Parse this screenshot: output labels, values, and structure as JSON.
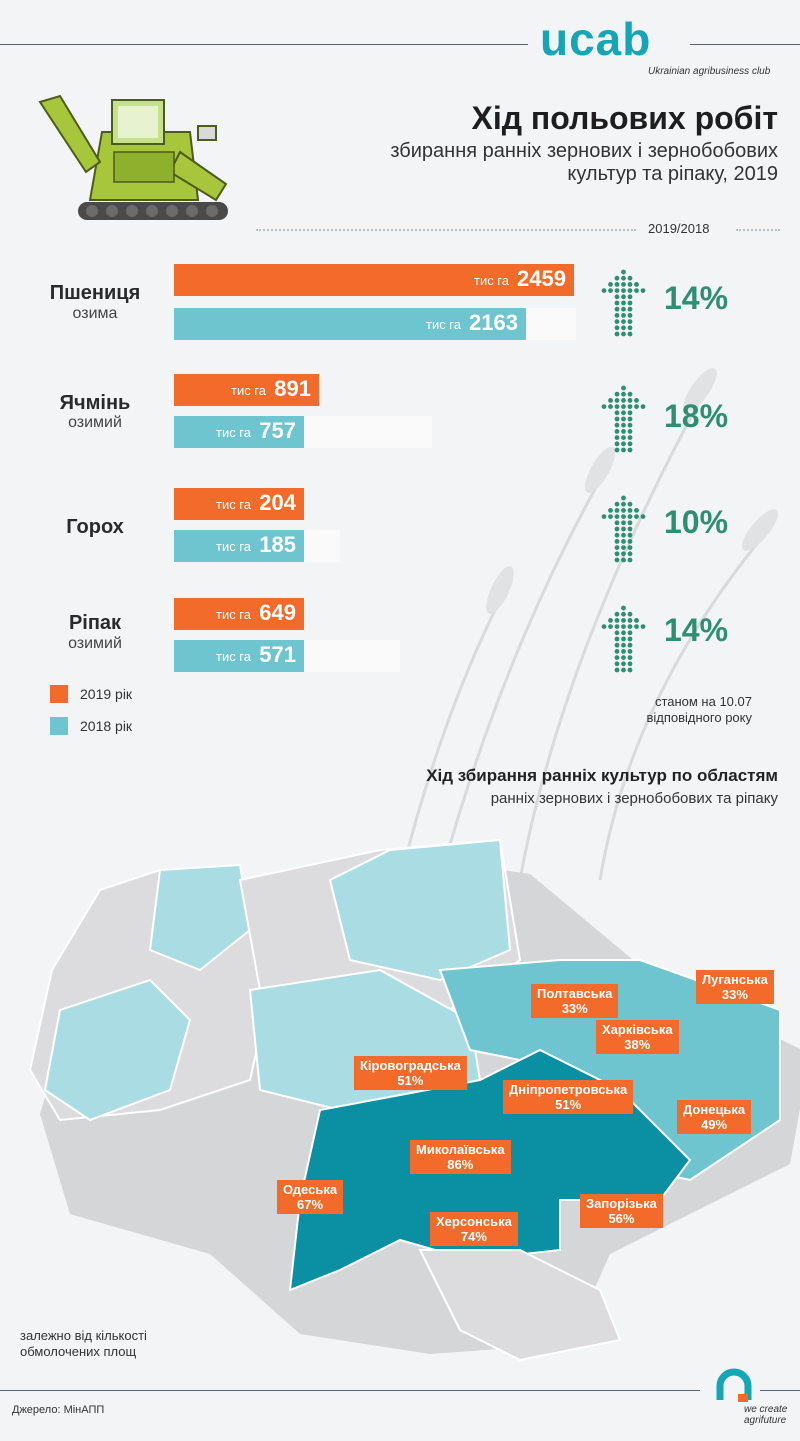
{
  "brand": {
    "logo": "ucab",
    "tagline": "Ukrainian agribusiness club",
    "slogan": "we create agrifuture"
  },
  "title": "Хід польових робіт",
  "subtitle": "збирання ранніх зернових і зернобобових культур та ріпаку, 2019",
  "comparison_label": "2019/2018",
  "colors": {
    "y2019": "#f26b2a",
    "y2018": "#6ec4cf",
    "pct": "#2e8f6e",
    "map_dark": "#0b8fa3",
    "map_mid": "#6ec4cf",
    "map_light": "#a9dce3",
    "map_grey": "#d8d9db"
  },
  "legend": {
    "y2019": "2019 рік",
    "y2018": "2018 рік"
  },
  "note": "станом на 10.07 відповідного року",
  "chart_data": {
    "type": "bar",
    "unit": "тис га",
    "categories": [
      "Пшениця озима",
      "Ячмінь озимий",
      "Горох",
      "Ріпак озимий"
    ],
    "series": [
      {
        "name": "2019 рік",
        "values": [
          2459,
          891,
          204,
          649
        ]
      },
      {
        "name": "2018 рік",
        "values": [
          2163,
          757,
          185,
          571
        ]
      }
    ],
    "change_pct": [
      "14%",
      "18%",
      "10%",
      "14%"
    ],
    "crops": [
      {
        "name": "Пшениця",
        "sub": "озима"
      },
      {
        "name": "Ячмінь",
        "sub": "озимий"
      },
      {
        "name": "Горох",
        "sub": ""
      },
      {
        "name": "Ріпак",
        "sub": "озимий"
      }
    ]
  },
  "map": {
    "title": "Хід збирання ранніх культур по областям",
    "subtitle": "ранніх зернових і зернобобових та ріпаку",
    "legend_note": "залежно від кількості обмолочених площ",
    "regions": [
      {
        "name": "Полтавська",
        "value": "33%"
      },
      {
        "name": "Луганська",
        "value": "33%"
      },
      {
        "name": "Харківська",
        "value": "38%"
      },
      {
        "name": "Кіровоградська",
        "value": "51%"
      },
      {
        "name": "Дніпропетровська",
        "value": "51%"
      },
      {
        "name": "Донецька",
        "value": "49%"
      },
      {
        "name": "Миколаївська",
        "value": "86%"
      },
      {
        "name": "Одеська",
        "value": "67%"
      },
      {
        "name": "Запорізька",
        "value": "56%"
      },
      {
        "name": "Херсонська",
        "value": "74%"
      }
    ]
  },
  "source": "Джерело: МінАПП"
}
